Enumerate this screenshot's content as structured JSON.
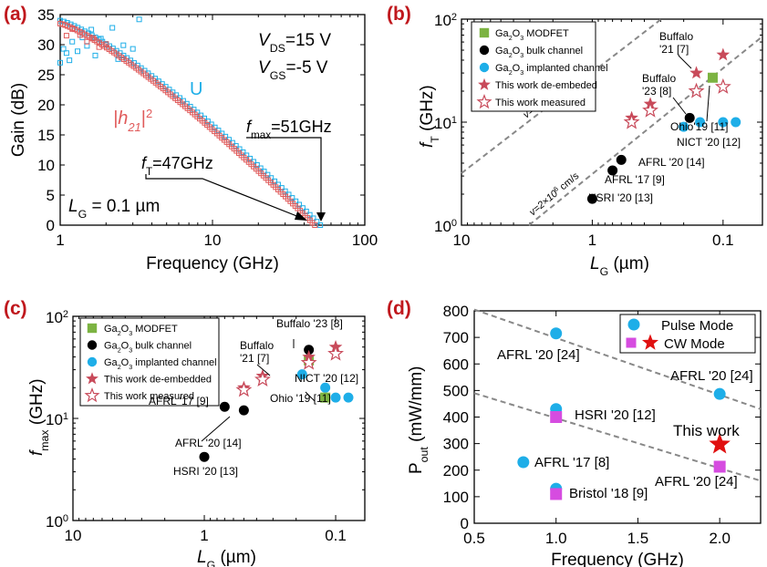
{
  "figure": {
    "panel_labels": [
      "(a)",
      "(b)",
      "(c)",
      "(d)"
    ],
    "colors": {
      "panel_label": "#c0181d",
      "red": "#e05a5a",
      "blue": "#1eaee8",
      "green": "#7cb342",
      "black": "#000000",
      "magenta": "#d64ce0",
      "dash": "#888888",
      "star_red": "#e01010"
    }
  },
  "chart_data": [
    {
      "panel": "(a)",
      "type": "scatter",
      "xlabel": "Frequency (GHz)",
      "ylabel": "Gain (dB)",
      "xscale": "log",
      "xlim": [
        1,
        100
      ],
      "ylim": [
        0,
        35
      ],
      "xticks": [
        "1",
        "10",
        "100"
      ],
      "yticks": [
        "0",
        "5",
        "10",
        "15",
        "20",
        "25",
        "30",
        "35"
      ],
      "annotations": {
        "vds_label": "V",
        "vds_sub": "DS",
        "vds_val": "=15 V",
        "vgs_label": "V",
        "vgs_sub": "GS",
        "vgs_val": "=-5 V",
        "u_label": "U",
        "h21_label": "|h",
        "h21_sub": "21",
        "h21_end": "|",
        "h21_sup": "2",
        "fmax_label": "f",
        "fmax_sub": "max",
        "fmax_val": "=51GHz",
        "ft_label": "f",
        "ft_sub": "T",
        "ft_val": "=47GHz",
        "lg_label": "L",
        "lg_sub": "G",
        "lg_val": " = 0.1 µm"
      },
      "series": [
        {
          "name": "U",
          "color": "#1eaee8",
          "marker": "open-square",
          "x_range": [
            1,
            51
          ],
          "y_start": 34,
          "y_end": 0,
          "count": 75,
          "scatter_pts": [
            [
              1,
              27
            ],
            [
              1.05,
              29.3
            ],
            [
              1.1,
              28.6
            ],
            [
              1.15,
              27.4
            ],
            [
              1.2,
              30.5
            ],
            [
              1.3,
              28.9
            ],
            [
              1.4,
              31.2
            ],
            [
              1.5,
              29.8
            ],
            [
              1.6,
              32.5
            ],
            [
              1.7,
              28.2
            ],
            [
              1.85,
              31
            ],
            [
              2,
              30
            ],
            [
              2.2,
              32.8
            ],
            [
              2.4,
              27.6
            ],
            [
              2.6,
              29.9
            ],
            [
              3,
              29.3
            ],
            [
              3.3,
              34.2
            ]
          ]
        },
        {
          "name": "|h21|2",
          "color": "#e05a5a",
          "marker": "open-square",
          "x_range": [
            1,
            47
          ],
          "y_start": 33.5,
          "y_end": 0,
          "count": 105,
          "scatter_pts": [
            [
              1.1,
              31.5
            ],
            [
              1.2,
              32.6
            ],
            [
              1.35,
              31.6
            ],
            [
              1.5,
              30.5
            ],
            [
              1.65,
              31.1
            ],
            [
              1.8,
              29.6
            ],
            [
              2.0,
              30.1
            ]
          ]
        }
      ]
    },
    {
      "panel": "(b)",
      "type": "scatter",
      "xlabel": "L",
      "xlabel_sub": "G",
      "xlabel_unit": " (µm)",
      "ylabel": "f",
      "ylabel_sub": "T",
      "ylabel_unit": " (GHz)",
      "xscale": "log",
      "yscale": "log",
      "xlim": [
        10,
        0.05
      ],
      "ylim": [
        1,
        100
      ],
      "xticks": [
        "10",
        "1",
        "0.1"
      ],
      "yticks": [
        "10",
        "10",
        "10"
      ],
      "ytick_exps": [
        "0",
        "1",
        "2"
      ],
      "legend": [
        {
          "label": "Ga",
          "sub": "2",
          "mid": "O",
          "sub2": "3",
          "tail": " MODFET",
          "marker": "square",
          "color": "#7cb342"
        },
        {
          "label": "Ga",
          "sub": "2",
          "mid": "O",
          "sub2": "3",
          "tail": " bulk channel",
          "marker": "circle",
          "color": "#000000"
        },
        {
          "label": "Ga",
          "sub": "2",
          "mid": "O",
          "sub2": "3",
          "tail": " implanted channel",
          "marker": "circle",
          "color": "#1eaee8"
        },
        {
          "label": "This work de-embeded",
          "marker": "star",
          "color": "#c84a5a"
        },
        {
          "label": "This work measured",
          "marker": "open-star",
          "color": "#c84a5a"
        }
      ],
      "line_labels": [
        "v=2×10",
        "7",
        " cm/s",
        "v=2×10",
        "6",
        " cm/s"
      ],
      "points": [
        {
          "type": "black",
          "x": 1.0,
          "y": 1.8,
          "label": "HSRI '20 [13]"
        },
        {
          "type": "black",
          "x": 0.7,
          "y": 3.4,
          "label": "AFRL '17 [9]"
        },
        {
          "type": "black",
          "x": 0.6,
          "y": 4.3,
          "label": "AFRL '20 [14]"
        },
        {
          "type": "black",
          "x": 0.18,
          "y": 11,
          "label": "Buffalo '23 [8]"
        },
        {
          "type": "blue",
          "x": 0.15,
          "y": 10
        },
        {
          "type": "blue",
          "x": 0.1,
          "y": 10
        },
        {
          "type": "blue",
          "x": 0.08,
          "y": 10
        },
        {
          "type": "blue",
          "x": 0.2,
          "y": 9,
          "label": "NICT '20 [12]"
        },
        {
          "type": "green",
          "x": 0.12,
          "y": 27,
          "label": "Ohio'19 [11]"
        },
        {
          "type": "star",
          "x": 0.16,
          "y": 30,
          "label": "Buffalo '21 [7]"
        },
        {
          "type": "star",
          "x": 0.1,
          "y": 45
        },
        {
          "type": "star",
          "x": 0.5,
          "y": 11
        },
        {
          "type": "star",
          "x": 0.36,
          "y": 15
        },
        {
          "type": "ostar",
          "x": 0.5,
          "y": 10
        },
        {
          "type": "ostar",
          "x": 0.36,
          "y": 13
        },
        {
          "type": "ostar",
          "x": 0.16,
          "y": 20
        },
        {
          "type": "ostar",
          "x": 0.1,
          "y": 22
        }
      ]
    },
    {
      "panel": "(c)",
      "type": "scatter",
      "xlabel": "L",
      "xlabel_sub": "G",
      "xlabel_unit": " (µm)",
      "ylabel": "f",
      "ylabel_sub": "max",
      "ylabel_unit": " (GHz)",
      "xscale": "log",
      "yscale": "log",
      "xlim": [
        10,
        0.06
      ],
      "ylim": [
        1,
        100
      ],
      "xticks": [
        "10",
        "1",
        "0.1"
      ],
      "yticks": [
        "10",
        "10",
        "10"
      ],
      "ytick_exps": [
        "0",
        "1",
        "2"
      ],
      "legend": [
        {
          "label": "Ga",
          "sub": "2",
          "mid": "O",
          "sub2": "3",
          "tail": " MODFET",
          "marker": "square",
          "color": "#7cb342"
        },
        {
          "label": "Ga",
          "sub": "2",
          "mid": "O",
          "sub2": "3",
          "tail": " bulk channel",
          "marker": "circle",
          "color": "#000000"
        },
        {
          "label": "Ga",
          "sub": "2",
          "mid": "O",
          "sub2": "3",
          "tail": " implanted channel",
          "marker": "circle",
          "color": "#1eaee8"
        },
        {
          "label": "This work de-embedded",
          "marker": "star",
          "color": "#c84a5a"
        },
        {
          "label": "This work measured",
          "marker": "open-star",
          "color": "#c84a5a"
        }
      ],
      "points": [
        {
          "type": "black",
          "x": 1.0,
          "y": 4.2,
          "label": "HSRI '20 [13]"
        },
        {
          "type": "black",
          "x": 0.7,
          "y": 13,
          "label": "AFRL '17 [9]"
        },
        {
          "type": "black",
          "x": 0.5,
          "y": 12,
          "label": "AFRL '20 [14]"
        },
        {
          "type": "black",
          "x": 0.16,
          "y": 47,
          "label": "Buffalo '23 [8]"
        },
        {
          "type": "blue",
          "x": 0.18,
          "y": 27
        },
        {
          "type": "blue",
          "x": 0.12,
          "y": 20
        },
        {
          "type": "blue",
          "x": 0.1,
          "y": 16
        },
        {
          "type": "blue",
          "x": 0.08,
          "y": 16
        },
        {
          "type": "green",
          "x": 0.12,
          "y": 16,
          "label": "Ohio '19 [11]"
        },
        {
          "type": "green",
          "x": 0.16,
          "y": 37
        },
        {
          "type": "star",
          "x": 0.5,
          "y": 20
        },
        {
          "type": "star",
          "x": 0.36,
          "y": 26
        },
        {
          "type": "star",
          "x": 0.16,
          "y": 40,
          "label": "Buffalo '21 [7]"
        },
        {
          "type": "star",
          "x": 0.1,
          "y": 50
        },
        {
          "type": "ostar",
          "x": 0.5,
          "y": 19
        },
        {
          "type": "ostar",
          "x": 0.36,
          "y": 24
        },
        {
          "type": "ostar",
          "x": 0.16,
          "y": 35
        },
        {
          "type": "ostar",
          "x": 0.1,
          "y": 43
        }
      ],
      "extra_labels": [
        "NICT '20 [12]"
      ]
    },
    {
      "panel": "(d)",
      "type": "scatter",
      "xlabel": "Frequency (GHz)",
      "ylabel": "P",
      "ylabel_sub": "out",
      "ylabel_unit": " (mW/mm)",
      "xlim": [
        0.5,
        2.25
      ],
      "ylim": [
        0,
        800
      ],
      "xticks": [
        "0.5",
        "1.0",
        "1.5",
        "2.0"
      ],
      "yticks": [
        "0",
        "100",
        "200",
        "300",
        "400",
        "500",
        "600",
        "700",
        "800"
      ],
      "legend": [
        {
          "label": "Pulse Mode",
          "marker": "circle",
          "color": "#1eaee8"
        },
        {
          "label": "CW Mode",
          "marker": "square+star",
          "color": "#d64ce0"
        }
      ],
      "points": [
        {
          "type": "pulse",
          "x": 1.0,
          "y": 715,
          "label": "AFRL '20 [24]"
        },
        {
          "type": "pulse",
          "x": 2.0,
          "y": 487,
          "label": "AFRL '20 [24]"
        },
        {
          "type": "pulse",
          "x": 1.0,
          "y": 430,
          "label": "HSRI '20 [12]"
        },
        {
          "type": "pulse",
          "x": 0.8,
          "y": 230,
          "label": "AFRL '17 [8]"
        },
        {
          "type": "pulse",
          "x": 1.0,
          "y": 130,
          "label": "Bristol '18 [9]"
        },
        {
          "type": "cw",
          "x": 1.0,
          "y": 400
        },
        {
          "type": "cw",
          "x": 1.0,
          "y": 110
        },
        {
          "type": "cw",
          "x": 2.0,
          "y": 213,
          "label": "AFRL '20 [24]"
        },
        {
          "type": "thiswork",
          "x": 2.0,
          "y": 297,
          "label": "This work"
        }
      ],
      "trend_lines": [
        {
          "x": [
            0.5,
            2.25
          ],
          "y": [
            805,
            430
          ]
        },
        {
          "x": [
            0.5,
            2.25
          ],
          "y": [
            490,
            160
          ]
        }
      ]
    }
  ]
}
